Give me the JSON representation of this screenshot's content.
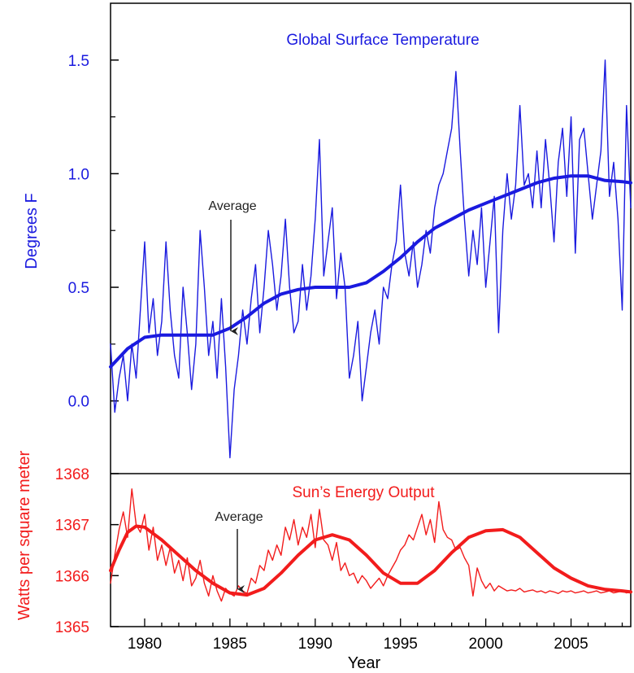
{
  "colors": {
    "temperature": "#1a1adf",
    "sun": "#f21c1c",
    "axis": "#000000",
    "annotation": "#222222"
  },
  "chart_data": [
    {
      "type": "line",
      "title": "Global Surface Temperature",
      "xlabel": "Year",
      "ylabel": "Degrees F",
      "xlim": [
        1978,
        2008.5
      ],
      "ylim": [
        -0.32,
        1.75
      ],
      "y_ticks": [
        0.0,
        0.5,
        1.0,
        1.5
      ],
      "y_tick_labels": [
        "0.0",
        "0.5",
        "1.0",
        "1.5"
      ],
      "annotation": {
        "text": "Average",
        "x": 1985,
        "y": 0.3
      },
      "series": [
        {
          "kind": "monthly",
          "x": [
            1978.0,
            1978.25,
            1978.5,
            1978.75,
            1979.0,
            1979.25,
            1979.5,
            1979.75,
            1980.0,
            1980.25,
            1980.5,
            1980.75,
            1981.0,
            1981.25,
            1981.5,
            1981.75,
            1982.0,
            1982.25,
            1982.5,
            1982.75,
            1983.0,
            1983.25,
            1983.5,
            1983.75,
            1984.0,
            1984.25,
            1984.5,
            1984.75,
            1985.0,
            1985.25,
            1985.5,
            1985.75,
            1986.0,
            1986.25,
            1986.5,
            1986.75,
            1987.0,
            1987.25,
            1987.5,
            1987.75,
            1988.0,
            1988.25,
            1988.5,
            1988.75,
            1989.0,
            1989.25,
            1989.5,
            1989.75,
            1990.0,
            1990.25,
            1990.5,
            1990.75,
            1991.0,
            1991.25,
            1991.5,
            1991.75,
            1992.0,
            1992.25,
            1992.5,
            1992.75,
            1993.0,
            1993.25,
            1993.5,
            1993.75,
            1994.0,
            1994.25,
            1994.5,
            1994.75,
            1995.0,
            1995.25,
            1995.5,
            1995.75,
            1996.0,
            1996.25,
            1996.5,
            1996.75,
            1997.0,
            1997.25,
            1997.5,
            1997.75,
            1998.0,
            1998.25,
            1998.5,
            1998.75,
            1999.0,
            1999.25,
            1999.5,
            1999.75,
            2000.0,
            2000.25,
            2000.5,
            2000.75,
            2001.0,
            2001.25,
            2001.5,
            2001.75,
            2002.0,
            2002.25,
            2002.5,
            2002.75,
            2003.0,
            2003.25,
            2003.5,
            2003.75,
            2004.0,
            2004.25,
            2004.5,
            2004.75,
            2005.0,
            2005.25,
            2005.5,
            2005.75,
            2006.0,
            2006.25,
            2006.5,
            2006.75,
            2007.0,
            2007.25,
            2007.5,
            2007.75,
            2008.0,
            2008.25,
            2008.5
          ],
          "values": [
            0.25,
            -0.05,
            0.1,
            0.2,
            0.0,
            0.25,
            0.1,
            0.4,
            0.7,
            0.3,
            0.45,
            0.2,
            0.35,
            0.7,
            0.4,
            0.2,
            0.1,
            0.5,
            0.3,
            0.05,
            0.25,
            0.75,
            0.5,
            0.2,
            0.35,
            0.1,
            0.45,
            0.15,
            -0.25,
            0.05,
            0.2,
            0.4,
            0.25,
            0.45,
            0.6,
            0.3,
            0.5,
            0.75,
            0.6,
            0.4,
            0.55,
            0.8,
            0.5,
            0.3,
            0.35,
            0.6,
            0.4,
            0.55,
            0.8,
            1.15,
            0.55,
            0.7,
            0.85,
            0.45,
            0.65,
            0.5,
            0.1,
            0.2,
            0.35,
            0.0,
            0.15,
            0.3,
            0.4,
            0.25,
            0.5,
            0.45,
            0.6,
            0.7,
            0.95,
            0.65,
            0.55,
            0.7,
            0.5,
            0.6,
            0.75,
            0.65,
            0.85,
            0.95,
            1.0,
            1.1,
            1.2,
            1.45,
            1.1,
            0.8,
            0.55,
            0.75,
            0.6,
            0.85,
            0.5,
            0.7,
            0.9,
            0.3,
            0.75,
            1.0,
            0.8,
            0.95,
            1.3,
            0.95,
            1.0,
            0.85,
            1.1,
            0.85,
            1.15,
            0.95,
            0.7,
            1.05,
            1.2,
            0.9,
            1.25,
            0.65,
            1.15,
            1.2,
            1.0,
            0.8,
            0.95,
            1.1,
            1.5,
            0.9,
            1.05,
            0.8,
            0.4,
            1.3,
            0.85
          ],
          "name": ""
        },
        {
          "kind": "average",
          "x": [
            1978.0,
            1979.0,
            1980.0,
            1981.0,
            1982.0,
            1983.0,
            1984.0,
            1985.0,
            1986.0,
            1987.0,
            1988.0,
            1989.0,
            1990.0,
            1991.0,
            1992.0,
            1993.0,
            1994.0,
            1995.0,
            1996.0,
            1997.0,
            1998.0,
            1999.0,
            2000.0,
            2001.0,
            2002.0,
            2003.0,
            2004.0,
            2005.0,
            2006.0,
            2007.0,
            2008.0,
            2008.5
          ],
          "values": [
            0.15,
            0.23,
            0.28,
            0.29,
            0.29,
            0.29,
            0.29,
            0.32,
            0.37,
            0.43,
            0.47,
            0.49,
            0.5,
            0.5,
            0.5,
            0.52,
            0.57,
            0.63,
            0.7,
            0.76,
            0.8,
            0.84,
            0.87,
            0.9,
            0.93,
            0.96,
            0.98,
            0.99,
            0.99,
            0.97,
            0.965,
            0.96
          ],
          "name": "Average"
        }
      ]
    },
    {
      "type": "line",
      "title": "Sun’s Energy Output",
      "xlabel": "Year",
      "ylabel": "Watts per square meter",
      "xlim": [
        1978,
        2008.5
      ],
      "ylim": [
        1365,
        1368
      ],
      "y_ticks": [
        1365,
        1366,
        1367,
        1368
      ],
      "y_tick_labels": [
        "1365",
        "1366",
        "1367",
        "1368"
      ],
      "x_ticks": [
        1980,
        1985,
        1990,
        1995,
        2000,
        2005
      ],
      "x_tick_labels": [
        "1980",
        "1985",
        "1990",
        "1995",
        "2000",
        "2005"
      ],
      "annotation": {
        "text": "Average",
        "x": 1985.3,
        "y": 1365.75
      },
      "series": [
        {
          "kind": "monthly",
          "x": [
            1978.0,
            1978.25,
            1978.5,
            1978.75,
            1979.0,
            1979.25,
            1979.5,
            1979.75,
            1980.0,
            1980.25,
            1980.5,
            1980.75,
            1981.0,
            1981.25,
            1981.5,
            1981.75,
            1982.0,
            1982.25,
            1982.5,
            1982.75,
            1983.0,
            1983.25,
            1983.5,
            1983.75,
            1984.0,
            1984.25,
            1984.5,
            1984.75,
            1985.0,
            1985.25,
            1985.5,
            1985.75,
            1986.0,
            1986.25,
            1986.5,
            1986.75,
            1987.0,
            1987.25,
            1987.5,
            1987.75,
            1988.0,
            1988.25,
            1988.5,
            1988.75,
            1989.0,
            1989.25,
            1989.5,
            1989.75,
            1990.0,
            1990.25,
            1990.5,
            1990.75,
            1991.0,
            1991.25,
            1991.5,
            1991.75,
            1992.0,
            1992.25,
            1992.5,
            1992.75,
            1993.0,
            1993.25,
            1993.5,
            1993.75,
            1994.0,
            1994.25,
            1994.5,
            1994.75,
            1995.0,
            1995.25,
            1995.5,
            1995.75,
            1996.0,
            1996.25,
            1996.5,
            1996.75,
            1997.0,
            1997.25,
            1997.5,
            1997.75,
            1998.0,
            1998.25,
            1998.5,
            1998.75,
            1999.0,
            1999.25,
            1999.5,
            1999.75,
            2000.0,
            2000.25,
            2000.5,
            2000.75,
            2001.0,
            2001.25,
            2001.5,
            2001.75,
            2002.0,
            2002.25,
            2002.5,
            2002.75,
            2003.0,
            2003.25,
            2003.5,
            2003.75,
            2004.0,
            2004.25,
            2004.5,
            2004.75,
            2005.0,
            2005.25,
            2005.5,
            2005.75,
            2006.0,
            2006.25,
            2006.5,
            2006.75,
            2007.0,
            2007.25,
            2007.5,
            2007.75,
            2008.0,
            2008.25,
            2008.5
          ],
          "values": [
            1365.85,
            1366.4,
            1366.9,
            1367.25,
            1366.75,
            1367.7,
            1367.0,
            1366.85,
            1367.2,
            1366.5,
            1366.95,
            1366.3,
            1366.6,
            1366.2,
            1366.55,
            1366.05,
            1366.3,
            1365.9,
            1366.35,
            1365.8,
            1365.95,
            1366.3,
            1365.85,
            1365.6,
            1366.0,
            1365.7,
            1365.5,
            1365.75,
            1365.65,
            1365.6,
            1365.8,
            1365.7,
            1365.65,
            1365.95,
            1365.85,
            1366.2,
            1366.1,
            1366.5,
            1366.3,
            1366.6,
            1366.4,
            1366.95,
            1366.7,
            1367.1,
            1366.6,
            1366.95,
            1366.75,
            1367.2,
            1366.55,
            1367.3,
            1366.7,
            1366.6,
            1366.3,
            1366.65,
            1366.1,
            1366.25,
            1366.0,
            1366.05,
            1365.85,
            1366.0,
            1365.9,
            1365.75,
            1365.85,
            1365.95,
            1365.8,
            1366.0,
            1366.15,
            1366.3,
            1366.5,
            1366.6,
            1366.8,
            1366.7,
            1366.95,
            1367.2,
            1366.8,
            1367.1,
            1366.65,
            1367.45,
            1366.9,
            1366.75,
            1366.7,
            1366.5,
            1366.55,
            1366.35,
            1366.2,
            1365.6,
            1366.15,
            1365.9,
            1365.75,
            1365.85,
            1365.7,
            1365.8,
            1365.75,
            1365.7,
            1365.72,
            1365.7,
            1365.75,
            1365.68,
            1365.7,
            1365.72,
            1365.68,
            1365.7,
            1365.66,
            1365.7,
            1365.68,
            1365.65,
            1365.7,
            1365.68,
            1365.7,
            1365.66,
            1365.68,
            1365.7,
            1365.66,
            1365.68,
            1365.7,
            1365.66,
            1365.68,
            1365.7,
            1365.66,
            1365.68,
            1365.7,
            1365.66,
            1365.68
          ],
          "name": ""
        },
        {
          "kind": "average",
          "x": [
            1978.0,
            1978.5,
            1979.0,
            1979.5,
            1980.0,
            1981.0,
            1982.0,
            1983.0,
            1984.0,
            1985.0,
            1986.0,
            1987.0,
            1988.0,
            1989.0,
            1990.0,
            1991.0,
            1992.0,
            1993.0,
            1994.0,
            1995.0,
            1996.0,
            1997.0,
            1998.0,
            1999.0,
            2000.0,
            2001.0,
            2002.0,
            2003.0,
            2004.0,
            2005.0,
            2006.0,
            2007.0,
            2008.0,
            2008.5
          ],
          "values": [
            1366.1,
            1366.5,
            1366.85,
            1366.97,
            1366.95,
            1366.7,
            1366.4,
            1366.1,
            1365.85,
            1365.66,
            1365.62,
            1365.75,
            1366.05,
            1366.4,
            1366.7,
            1366.8,
            1366.7,
            1366.4,
            1366.05,
            1365.85,
            1365.85,
            1366.1,
            1366.45,
            1366.75,
            1366.88,
            1366.9,
            1366.75,
            1366.45,
            1366.15,
            1365.95,
            1365.8,
            1365.73,
            1365.7,
            1365.68
          ],
          "name": "Average"
        }
      ]
    }
  ]
}
